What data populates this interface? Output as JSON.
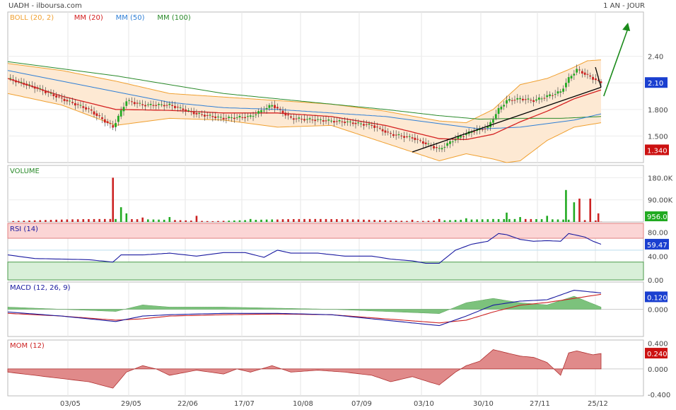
{
  "header": {
    "symbol": "UADH - ilboursa.com",
    "period": "1 AN - JOUR"
  },
  "colors": {
    "boll": "#f0a030",
    "ma20": "#d42020",
    "ma50": "#2f7fd6",
    "ma100": "#2a8a2a",
    "up": "#22aa22",
    "down": "#cc2222",
    "rsi": "#1a1aa0",
    "macd": "#1a1aa0",
    "signal": "#cc2222",
    "mom": "#cc4444",
    "last_price_badge": "#1a3fd0",
    "low_badge": "#cc1111"
  },
  "x_dates": [
    "03/05",
    "29/05",
    "22/06",
    "17/07",
    "10/08",
    "07/09",
    "03/10",
    "30/10",
    "27/11",
    "25/12"
  ],
  "panels": {
    "price": {
      "legend": [
        {
          "label": "BOLL (20, 2)",
          "color": "#f0a030"
        },
        {
          "label": "MM (20)",
          "color": "#d42020"
        },
        {
          "label": "MM (50)",
          "color": "#2f7fd6"
        },
        {
          "label": "MM (100)",
          "color": "#2a8a2a"
        }
      ],
      "ticks": [
        "2.40",
        "1.800",
        "1.500"
      ],
      "last": "2.10",
      "low": "1.340"
    },
    "volume": {
      "legend": "VOLUME",
      "ticks": [
        "180.0K",
        "90.00K"
      ],
      "last": "956.0"
    },
    "rsi": {
      "legend": "RSI (14)",
      "ticks": [
        "80.00",
        "40.00",
        "0.00"
      ],
      "last": "59.47"
    },
    "macd": {
      "legend": "MACD (12, 26, 9)",
      "ticks": [
        "0.000"
      ],
      "last": "0.120"
    },
    "mom": {
      "legend": "MOM (12)",
      "ticks": [
        "0.400",
        "0.000",
        "-0.400"
      ],
      "last": "0.240"
    }
  },
  "chart_data": {
    "type": "line",
    "keypoints": {
      "close": [
        [
          0,
          2.15
        ],
        [
          10,
          2.05
        ],
        [
          20,
          1.92
        ],
        [
          30,
          1.8
        ],
        [
          39,
          1.6
        ],
        [
          44,
          1.9
        ],
        [
          50,
          1.85
        ],
        [
          60,
          1.85
        ],
        [
          70,
          1.75
        ],
        [
          80,
          1.7
        ],
        [
          90,
          1.72
        ],
        [
          98,
          1.85
        ],
        [
          105,
          1.7
        ],
        [
          115,
          1.68
        ],
        [
          125,
          1.66
        ],
        [
          135,
          1.62
        ],
        [
          142,
          1.52
        ],
        [
          150,
          1.48
        ],
        [
          156,
          1.4
        ],
        [
          160,
          1.35
        ],
        [
          166,
          1.47
        ],
        [
          172,
          1.55
        ],
        [
          178,
          1.6
        ],
        [
          182,
          1.8
        ],
        [
          185,
          1.9
        ],
        [
          190,
          1.92
        ],
        [
          195,
          1.9
        ],
        [
          200,
          1.95
        ],
        [
          205,
          2.0
        ],
        [
          208,
          2.15
        ],
        [
          211,
          2.25
        ],
        [
          214,
          2.2
        ],
        [
          217,
          2.15
        ],
        [
          220,
          2.1
        ]
      ],
      "boll_upper": [
        [
          0,
          2.32
        ],
        [
          20,
          2.24
        ],
        [
          40,
          2.12
        ],
        [
          60,
          1.98
        ],
        [
          80,
          1.94
        ],
        [
          100,
          1.9
        ],
        [
          120,
          1.86
        ],
        [
          140,
          1.78
        ],
        [
          160,
          1.67
        ],
        [
          170,
          1.65
        ],
        [
          180,
          1.8
        ],
        [
          190,
          2.08
        ],
        [
          200,
          2.15
        ],
        [
          208,
          2.25
        ],
        [
          215,
          2.35
        ],
        [
          220,
          2.36
        ]
      ],
      "boll_lower": [
        [
          0,
          1.98
        ],
        [
          20,
          1.85
        ],
        [
          40,
          1.62
        ],
        [
          60,
          1.7
        ],
        [
          80,
          1.68
        ],
        [
          100,
          1.6
        ],
        [
          120,
          1.62
        ],
        [
          140,
          1.42
        ],
        [
          160,
          1.22
        ],
        [
          170,
          1.3
        ],
        [
          180,
          1.24
        ],
        [
          185,
          1.2
        ],
        [
          190,
          1.22
        ],
        [
          200,
          1.45
        ],
        [
          210,
          1.6
        ],
        [
          220,
          1.65
        ]
      ],
      "ma20": [
        [
          0,
          2.15
        ],
        [
          20,
          1.95
        ],
        [
          40,
          1.8
        ],
        [
          60,
          1.79
        ],
        [
          80,
          1.76
        ],
        [
          100,
          1.76
        ],
        [
          120,
          1.72
        ],
        [
          140,
          1.62
        ],
        [
          160,
          1.47
        ],
        [
          170,
          1.46
        ],
        [
          180,
          1.52
        ],
        [
          190,
          1.66
        ],
        [
          200,
          1.78
        ],
        [
          210,
          1.92
        ],
        [
          220,
          2.02
        ]
      ],
      "ma50": [
        [
          0,
          2.24
        ],
        [
          20,
          2.12
        ],
        [
          40,
          2.0
        ],
        [
          60,
          1.88
        ],
        [
          80,
          1.82
        ],
        [
          100,
          1.8
        ],
        [
          120,
          1.76
        ],
        [
          140,
          1.72
        ],
        [
          160,
          1.64
        ],
        [
          175,
          1.58
        ],
        [
          190,
          1.6
        ],
        [
          200,
          1.64
        ],
        [
          210,
          1.68
        ],
        [
          220,
          1.75
        ]
      ],
      "ma100": [
        [
          0,
          2.34
        ],
        [
          20,
          2.26
        ],
        [
          40,
          2.18
        ],
        [
          60,
          2.08
        ],
        [
          80,
          1.98
        ],
        [
          100,
          1.92
        ],
        [
          120,
          1.86
        ],
        [
          140,
          1.8
        ],
        [
          160,
          1.73
        ],
        [
          175,
          1.69
        ],
        [
          190,
          1.7
        ],
        [
          205,
          1.7
        ],
        [
          220,
          1.72
        ]
      ],
      "rsi": [
        [
          0,
          42
        ],
        [
          10,
          36
        ],
        [
          20,
          35
        ],
        [
          30,
          34
        ],
        [
          39,
          30
        ],
        [
          42,
          42
        ],
        [
          50,
          42
        ],
        [
          60,
          45
        ],
        [
          70,
          40
        ],
        [
          80,
          46
        ],
        [
          88,
          46
        ],
        [
          95,
          38
        ],
        [
          100,
          50
        ],
        [
          105,
          45
        ],
        [
          115,
          45
        ],
        [
          125,
          40
        ],
        [
          135,
          40
        ],
        [
          142,
          35
        ],
        [
          150,
          32
        ],
        [
          155,
          28
        ],
        [
          160,
          28
        ],
        [
          166,
          50
        ],
        [
          172,
          60
        ],
        [
          178,
          65
        ],
        [
          182,
          78
        ],
        [
          185,
          76
        ],
        [
          190,
          68
        ],
        [
          195,
          65
        ],
        [
          200,
          66
        ],
        [
          205,
          65
        ],
        [
          208,
          78
        ],
        [
          211,
          75
        ],
        [
          214,
          72
        ],
        [
          217,
          65
        ],
        [
          220,
          60
        ]
      ],
      "macd": [
        [
          0,
          -0.02
        ],
        [
          20,
          -0.05
        ],
        [
          40,
          -0.09
        ],
        [
          50,
          -0.05
        ],
        [
          60,
          -0.04
        ],
        [
          80,
          -0.03
        ],
        [
          100,
          -0.03
        ],
        [
          120,
          -0.04
        ],
        [
          140,
          -0.08
        ],
        [
          160,
          -0.12
        ],
        [
          170,
          -0.05
        ],
        [
          180,
          0.03
        ],
        [
          190,
          0.06
        ],
        [
          200,
          0.07
        ],
        [
          210,
          0.14
        ],
        [
          220,
          0.12
        ]
      ],
      "signal": [
        [
          0,
          -0.03
        ],
        [
          20,
          -0.05
        ],
        [
          40,
          -0.08
        ],
        [
          50,
          -0.07
        ],
        [
          60,
          -0.05
        ],
        [
          80,
          -0.04
        ],
        [
          100,
          -0.035
        ],
        [
          120,
          -0.04
        ],
        [
          140,
          -0.07
        ],
        [
          160,
          -0.1
        ],
        [
          170,
          -0.08
        ],
        [
          180,
          -0.02
        ],
        [
          190,
          0.03
        ],
        [
          200,
          0.05
        ],
        [
          210,
          0.08
        ],
        [
          220,
          0.11
        ]
      ],
      "mom": [
        [
          0,
          -0.05
        ],
        [
          10,
          -0.1
        ],
        [
          20,
          -0.15
        ],
        [
          30,
          -0.2
        ],
        [
          39,
          -0.3
        ],
        [
          44,
          -0.05
        ],
        [
          50,
          0.05
        ],
        [
          55,
          0.0
        ],
        [
          60,
          -0.1
        ],
        [
          70,
          -0.02
        ],
        [
          80,
          -0.08
        ],
        [
          85,
          0.0
        ],
        [
          90,
          -0.05
        ],
        [
          98,
          0.05
        ],
        [
          105,
          -0.05
        ],
        [
          115,
          -0.02
        ],
        [
          125,
          -0.05
        ],
        [
          135,
          -0.1
        ],
        [
          142,
          -0.2
        ],
        [
          150,
          -0.12
        ],
        [
          156,
          -0.2
        ],
        [
          160,
          -0.25
        ],
        [
          166,
          -0.05
        ],
        [
          170,
          0.05
        ],
        [
          175,
          0.12
        ],
        [
          180,
          0.3
        ],
        [
          185,
          0.25
        ],
        [
          190,
          0.2
        ],
        [
          195,
          0.18
        ],
        [
          200,
          0.1
        ],
        [
          205,
          -0.1
        ],
        [
          208,
          0.25
        ],
        [
          211,
          0.28
        ],
        [
          214,
          0.25
        ],
        [
          217,
          0.22
        ],
        [
          220,
          0.24
        ]
      ]
    },
    "volume_spikes": [
      [
        39,
        180000
      ],
      [
        42,
        60000
      ],
      [
        44,
        35000
      ],
      [
        50,
        18000
      ],
      [
        60,
        20000
      ],
      [
        70,
        25000
      ],
      [
        90,
        12000
      ],
      [
        100,
        10000
      ],
      [
        150,
        9000
      ],
      [
        160,
        12000
      ],
      [
        170,
        15000
      ],
      [
        180,
        12000
      ],
      [
        185,
        38000
      ],
      [
        190,
        20000
      ],
      [
        200,
        25000
      ],
      [
        207,
        130000
      ],
      [
        210,
        80000
      ],
      [
        212,
        95000
      ],
      [
        216,
        95000
      ],
      [
        219,
        35000
      ],
      [
        220,
        956
      ]
    ],
    "trendline": [
      [
        150,
        1.32
      ],
      [
        220,
        2.05
      ]
    ],
    "arrow": [
      [
        221,
        1.95
      ],
      [
        230,
        2.78
      ]
    ],
    "ranges": {
      "n": 220,
      "price": [
        1.2,
        2.9
      ],
      "volume": [
        0,
        230000
      ],
      "rsi": [
        0,
        95
      ],
      "macd": [
        -0.2,
        0.2
      ],
      "mom": [
        -0.42,
        0.45
      ]
    }
  }
}
